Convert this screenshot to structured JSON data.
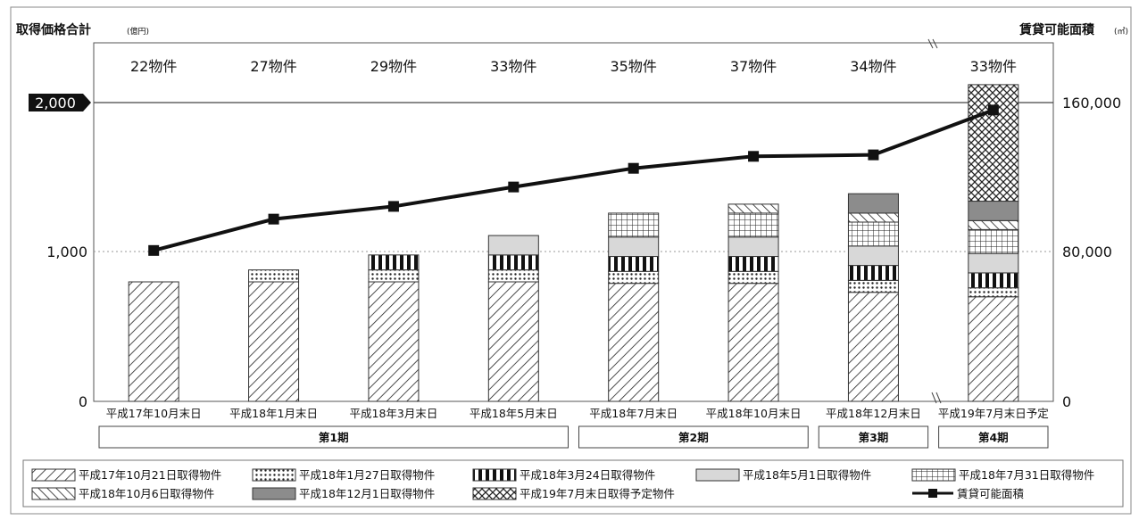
{
  "chart_data": {
    "type": "bar",
    "y_left_title": "取得価格合計",
    "y_left_unit": "(億円)",
    "y_right_title": "賃貸可能面積",
    "y_right_unit": "(㎡)",
    "ylim_left": [
      0,
      2200
    ],
    "ylim_right": [
      0,
      176000
    ],
    "yticks_left": [
      "0",
      "1,000",
      "2,000"
    ],
    "yticks_right": [
      "0",
      "80,000",
      "160,000"
    ],
    "categories": [
      "平成17年10月末日",
      "平成18年1月末日",
      "平成18年3月末日",
      "平成18年5月末日",
      "平成18年7月末日",
      "平成18年10月末日",
      "平成18年12月末日",
      "平成19年7月末日予定"
    ],
    "property_counts": [
      "22物件",
      "27物件",
      "29物件",
      "33物件",
      "35物件",
      "37物件",
      "34物件",
      "33物件"
    ],
    "periods": [
      {
        "label": "第1期",
        "from": 0,
        "to": 3
      },
      {
        "label": "第2期",
        "from": 4,
        "to": 5
      },
      {
        "label": "第3期",
        "from": 6,
        "to": 6
      },
      {
        "label": "第4期",
        "from": 7,
        "to": 7
      }
    ],
    "series": [
      {
        "name": "平成17年10月21日取得物件",
        "pattern": "diag",
        "values": [
          800,
          800,
          800,
          800,
          790,
          790,
          730,
          700
        ]
      },
      {
        "name": "平成18年1月27日取得物件",
        "pattern": "dots",
        "values": [
          0,
          80,
          80,
          80,
          80,
          80,
          80,
          60
        ]
      },
      {
        "name": "平成18年3月24日取得物件",
        "pattern": "vbars",
        "values": [
          0,
          0,
          100,
          100,
          100,
          100,
          100,
          100
        ]
      },
      {
        "name": "平成18年5月1日取得物件",
        "pattern": "gray",
        "values": [
          0,
          0,
          0,
          130,
          130,
          130,
          130,
          130
        ]
      },
      {
        "name": "平成18年7月31日取得物件",
        "pattern": "grid",
        "values": [
          0,
          0,
          0,
          0,
          160,
          160,
          160,
          160
        ]
      },
      {
        "name": "平成18年10月6日取得物件",
        "pattern": "rdiag",
        "values": [
          0,
          0,
          0,
          0,
          0,
          60,
          60,
          60
        ]
      },
      {
        "name": "平成18年12月1日取得物件",
        "pattern": "dark",
        "values": [
          0,
          0,
          0,
          0,
          0,
          0,
          130,
          130
        ]
      },
      {
        "name": "平成19年7月末日取得予定物件",
        "pattern": "cross",
        "values": [
          0,
          0,
          0,
          0,
          0,
          0,
          0,
          780
        ]
      }
    ],
    "line": {
      "name": "賃貸可能面積",
      "values": [
        80800,
        97600,
        104400,
        114800,
        124800,
        131200,
        132000,
        156000
      ]
    },
    "threshold_label": "2,000"
  }
}
